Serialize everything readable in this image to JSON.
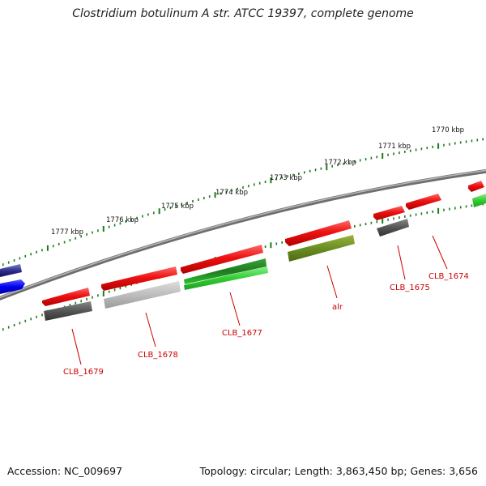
{
  "title": "Clostridium botulinum A str. ATCC 19397, complete genome",
  "accession_text": "Accession: NC_009697",
  "topology_text": "Topology: circular; Length: 3,863,450 bp; Genes: 3,656",
  "scale_labels": [
    "1770 kbp",
    "1771 kbp",
    "1772 kbp",
    "1773 kbp",
    "1774 kbp",
    "1775 kbp",
    "1776 kbp",
    "1777 kbp"
  ],
  "gene_labels": [
    "CLB_1674",
    "CLB_1675",
    "alr",
    "CLB_1677",
    "CLB_1678",
    "CLB_1679"
  ],
  "colors": {
    "backbone": "#8a8a8a",
    "tick": "#1e7a1e",
    "cds": "#ee1111",
    "label": "#cc0000"
  }
}
